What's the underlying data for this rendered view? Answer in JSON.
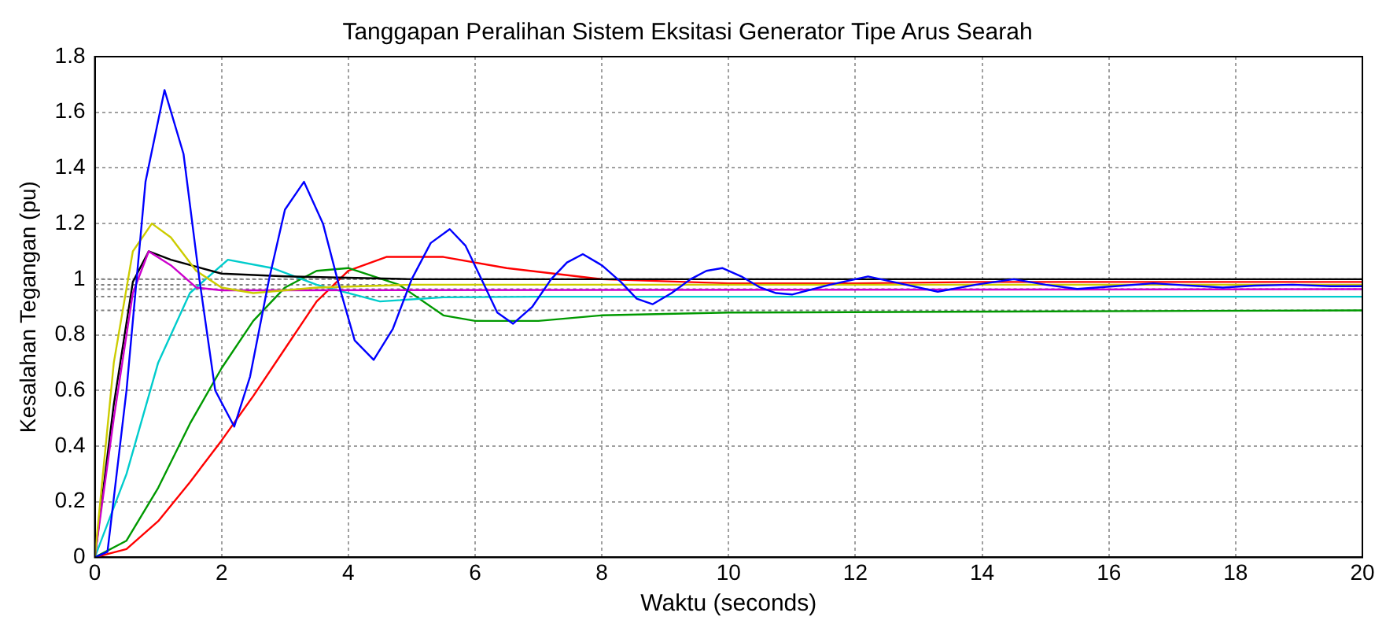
{
  "chart_data": {
    "type": "line",
    "title": "Tanggapan Peralihan Sistem Eksitasi Generator Tipe Arus Searah",
    "xlabel": "Waktu (seconds)",
    "ylabel": "Kesalahan Tegangan (pu)",
    "xlim": [
      0,
      20
    ],
    "xticks": [
      0,
      2,
      4,
      6,
      8,
      10,
      12,
      14,
      16,
      18,
      20
    ],
    "ylim": [
      0,
      1.8
    ],
    "yticks": [
      0,
      0.2,
      0.4,
      0.6,
      0.8,
      1,
      1.2,
      1.4,
      1.6,
      1.8
    ],
    "grid": true,
    "line_style": "solid",
    "ref_lines": [
      {
        "axis": "y",
        "value": 1,
        "color": "#808080",
        "line_style": "dotted"
      },
      {
        "axis": "y",
        "value": 0.98,
        "color": "#808080",
        "line_style": "dotted"
      },
      {
        "axis": "y",
        "value": 0.964,
        "color": "#808080",
        "line_style": "dotted"
      },
      {
        "axis": "y",
        "value": 0.937,
        "color": "#808080",
        "line_style": "dotted"
      },
      {
        "axis": "y",
        "value": 0.888,
        "color": "#808080",
        "line_style": "dotted"
      }
    ],
    "series": [
      {
        "color": "#0000ff",
        "x": [
          0,
          0.2,
          0.5,
          0.8,
          1.1,
          1.4,
          1.65,
          1.9,
          2.2,
          2.45,
          2.75,
          3.0,
          3.3,
          3.6,
          3.85,
          4.1,
          4.4,
          4.7,
          5.0,
          5.3,
          5.6,
          5.85,
          6.1,
          6.35,
          6.6,
          6.9,
          7.2,
          7.45,
          7.7,
          8.0,
          8.3,
          8.55,
          8.8,
          9.1,
          9.4,
          9.65,
          9.9,
          10.2,
          10.5,
          10.75,
          11,
          11.6,
          12.2,
          12.8,
          13.3,
          13.9,
          14.5,
          15,
          15.5,
          16.1,
          16.7,
          17.2,
          17.8,
          18.3,
          18.9,
          19.5,
          20
        ],
        "values": [
          0,
          0.02,
          0.6,
          1.35,
          1.68,
          1.45,
          1.0,
          0.6,
          0.47,
          0.65,
          1.0,
          1.25,
          1.35,
          1.2,
          0.98,
          0.78,
          0.71,
          0.82,
          1.0,
          1.13,
          1.18,
          1.12,
          1.0,
          0.88,
          0.84,
          0.9,
          1.0,
          1.06,
          1.09,
          1.05,
          0.99,
          0.93,
          0.91,
          0.95,
          1.0,
          1.03,
          1.04,
          1.01,
          0.97,
          0.95,
          0.945,
          0.98,
          1.01,
          0.98,
          0.955,
          0.98,
          1.0,
          0.98,
          0.965,
          0.975,
          0.985,
          0.978,
          0.97,
          0.977,
          0.98,
          0.975,
          0.975
        ]
      },
      {
        "color": "#cccc00",
        "x": [
          0,
          0.3,
          0.6,
          0.9,
          1.2,
          1.6,
          2.0,
          2.5,
          3.5,
          5,
          20
        ],
        "values": [
          0,
          0.7,
          1.1,
          1.2,
          1.15,
          1.03,
          0.97,
          0.95,
          0.97,
          0.98,
          0.98
        ]
      },
      {
        "color": "#cc00cc",
        "x": [
          0,
          0.3,
          0.6,
          0.85,
          1.2,
          1.6,
          2.0,
          2.5,
          20
        ],
        "values": [
          0,
          0.5,
          0.95,
          1.1,
          1.05,
          0.97,
          0.96,
          0.96,
          0.964
        ]
      },
      {
        "color": "#000000",
        "x": [
          0,
          0.3,
          0.6,
          0.85,
          1.2,
          2,
          3,
          5,
          20
        ],
        "values": [
          0,
          0.55,
          0.99,
          1.1,
          1.07,
          1.02,
          1.01,
          1.0,
          1.0
        ]
      },
      {
        "color": "#00cccc",
        "x": [
          0,
          0.5,
          1.0,
          1.5,
          2.1,
          2.8,
          3.5,
          4.5,
          5.5,
          7,
          20
        ],
        "values": [
          0,
          0.3,
          0.7,
          0.95,
          1.07,
          1.04,
          0.98,
          0.92,
          0.935,
          0.937,
          0.937
        ]
      },
      {
        "color": "#009900",
        "x": [
          0,
          0.5,
          1.0,
          1.5,
          2,
          2.5,
          3,
          3.5,
          4,
          4.8,
          5.5,
          6,
          7,
          8,
          10,
          20
        ],
        "values": [
          0,
          0.06,
          0.25,
          0.48,
          0.68,
          0.85,
          0.97,
          1.03,
          1.04,
          0.98,
          0.87,
          0.85,
          0.85,
          0.87,
          0.88,
          0.888
        ]
      },
      {
        "color": "#ff0000",
        "x": [
          0,
          0.5,
          1,
          1.5,
          2,
          2.5,
          3,
          3.5,
          4,
          4.6,
          5.5,
          6.5,
          8,
          10,
          12,
          14,
          20
        ],
        "values": [
          0,
          0.03,
          0.13,
          0.27,
          0.42,
          0.58,
          0.75,
          0.92,
          1.03,
          1.08,
          1.08,
          1.04,
          1.0,
          0.985,
          0.985,
          0.99,
          0.99
        ]
      }
    ]
  }
}
